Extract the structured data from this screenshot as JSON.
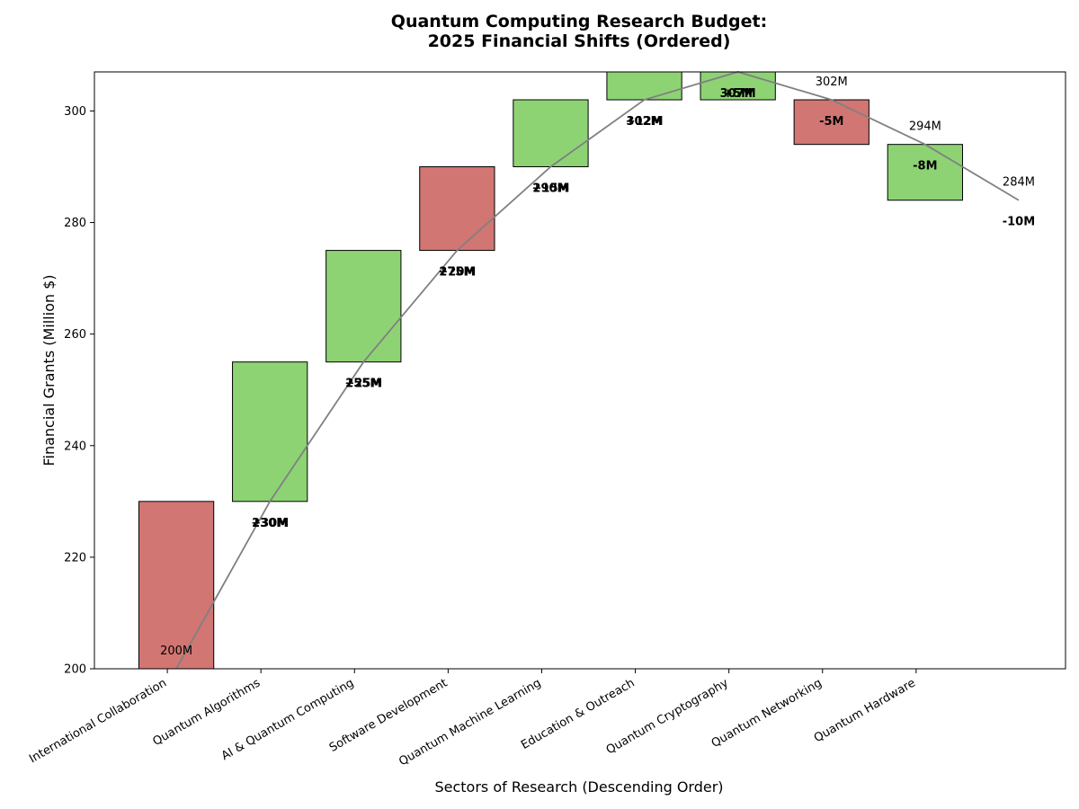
{
  "chart_data": {
    "type": "bar",
    "subtype": "waterfall",
    "title_line1": "Quantum Computing Research Budget:",
    "title_line2": "2025 Financial Shifts (Ordered)",
    "xlabel": "Sectors of Research (Descending Order)",
    "ylabel": "Financial Grants (Million $)",
    "ylim": [
      200,
      307
    ],
    "yticks": [
      200,
      220,
      240,
      260,
      280,
      300
    ],
    "categories": [
      "International Collaboration",
      "Quantum Algorithms",
      "AI & Quantum Computing",
      "Software Development",
      "Quantum Machine Learning",
      "Education & Outreach",
      "Quantum Cryptography",
      "Quantum Networking",
      "Quantum Hardware"
    ],
    "bars": [
      {
        "bottom": 200,
        "top": 230,
        "color": "#d17673"
      },
      {
        "bottom": 230,
        "top": 255,
        "color": "#8dd374"
      },
      {
        "bottom": 255,
        "top": 275,
        "color": "#8dd374"
      },
      {
        "bottom": 275,
        "top": 290,
        "color": "#d17673"
      },
      {
        "bottom": 290,
        "top": 302,
        "color": "#8dd374"
      },
      {
        "bottom": 302,
        "top": 307,
        "color": "#8dd374"
      },
      {
        "bottom": 302,
        "top": 307,
        "color": "#8dd374"
      },
      {
        "bottom": 294,
        "top": 302,
        "color": "#d17673"
      },
      {
        "bottom": 284,
        "top": 294,
        "color": "#8dd374"
      }
    ],
    "cumulative": [
      200,
      230,
      255,
      275,
      290,
      302,
      307,
      302,
      294,
      284
    ],
    "total_labels": [
      {
        "text": "200M",
        "x": 0,
        "y": 200
      },
      {
        "text": "302M",
        "x": 7,
        "y": 302
      },
      {
        "text": "294M",
        "x": 8,
        "y": 294
      },
      {
        "text": "284M",
        "x": 9,
        "y": 284
      }
    ],
    "delta_labels": [
      {
        "texts": [
          "+30M",
          "230M"
        ],
        "x": 1,
        "y": 230
      },
      {
        "texts": [
          "+25M",
          "255M"
        ],
        "x": 2,
        "y": 255
      },
      {
        "texts": [
          "+20M",
          "275M"
        ],
        "x": 3,
        "y": 275
      },
      {
        "texts": [
          "+15M",
          "290M"
        ],
        "x": 4,
        "y": 290
      },
      {
        "texts": [
          "+12M",
          "302M"
        ],
        "x": 5,
        "y": 302
      },
      {
        "texts": [
          "+5M",
          "307M"
        ],
        "x": 6,
        "y": 307
      },
      {
        "texts": [
          "-5M"
        ],
        "x": 7,
        "y": 302
      },
      {
        "texts": [
          "-8M"
        ],
        "x": 8,
        "y": 294
      },
      {
        "texts": [
          "-10M"
        ],
        "x": 9,
        "y": 284
      }
    ],
    "line_color": "#808080",
    "grid": false
  }
}
